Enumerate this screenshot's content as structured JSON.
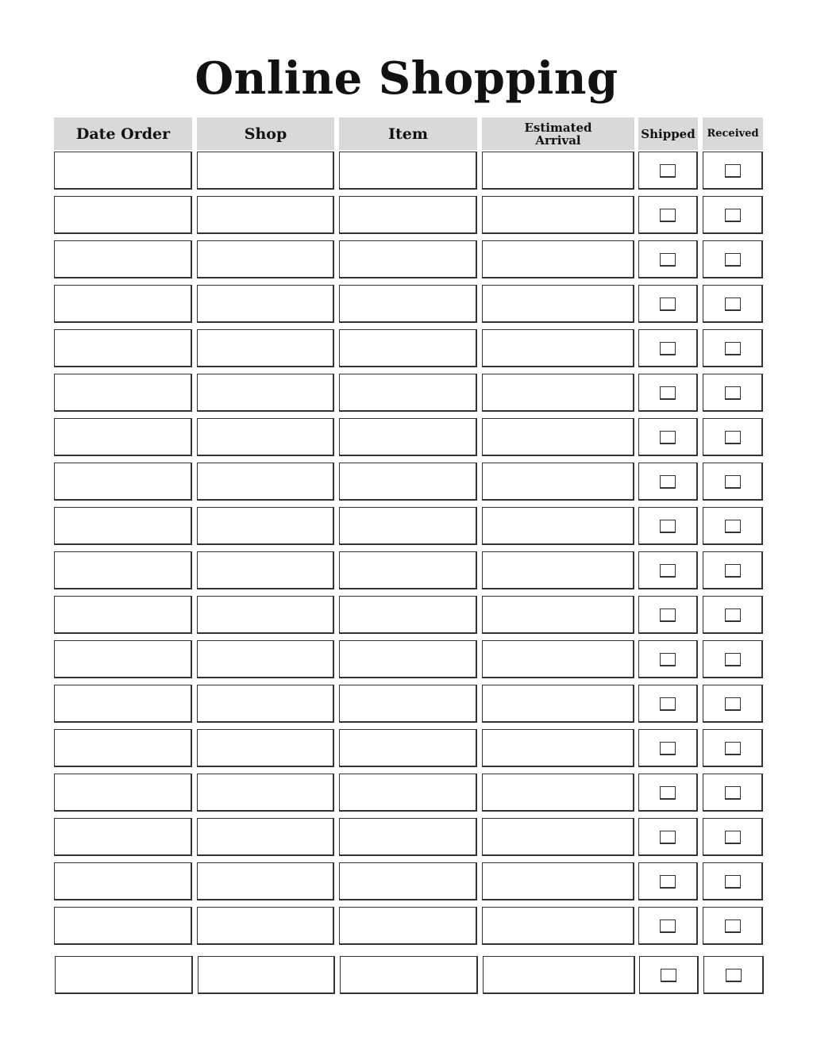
{
  "title": "Online Shopping",
  "columns": [
    {
      "label": "Date Order",
      "type": "text"
    },
    {
      "label": "Shop",
      "type": "text"
    },
    {
      "label": "Item",
      "type": "text"
    },
    {
      "label": "Estimated Arrival",
      "type": "text"
    },
    {
      "label": "Shipped",
      "type": "checkbox"
    },
    {
      "label": "Received",
      "type": "checkbox"
    }
  ],
  "row_count": 19,
  "colors": {
    "header_bg": "#d9d9d9",
    "border": "#333333"
  }
}
